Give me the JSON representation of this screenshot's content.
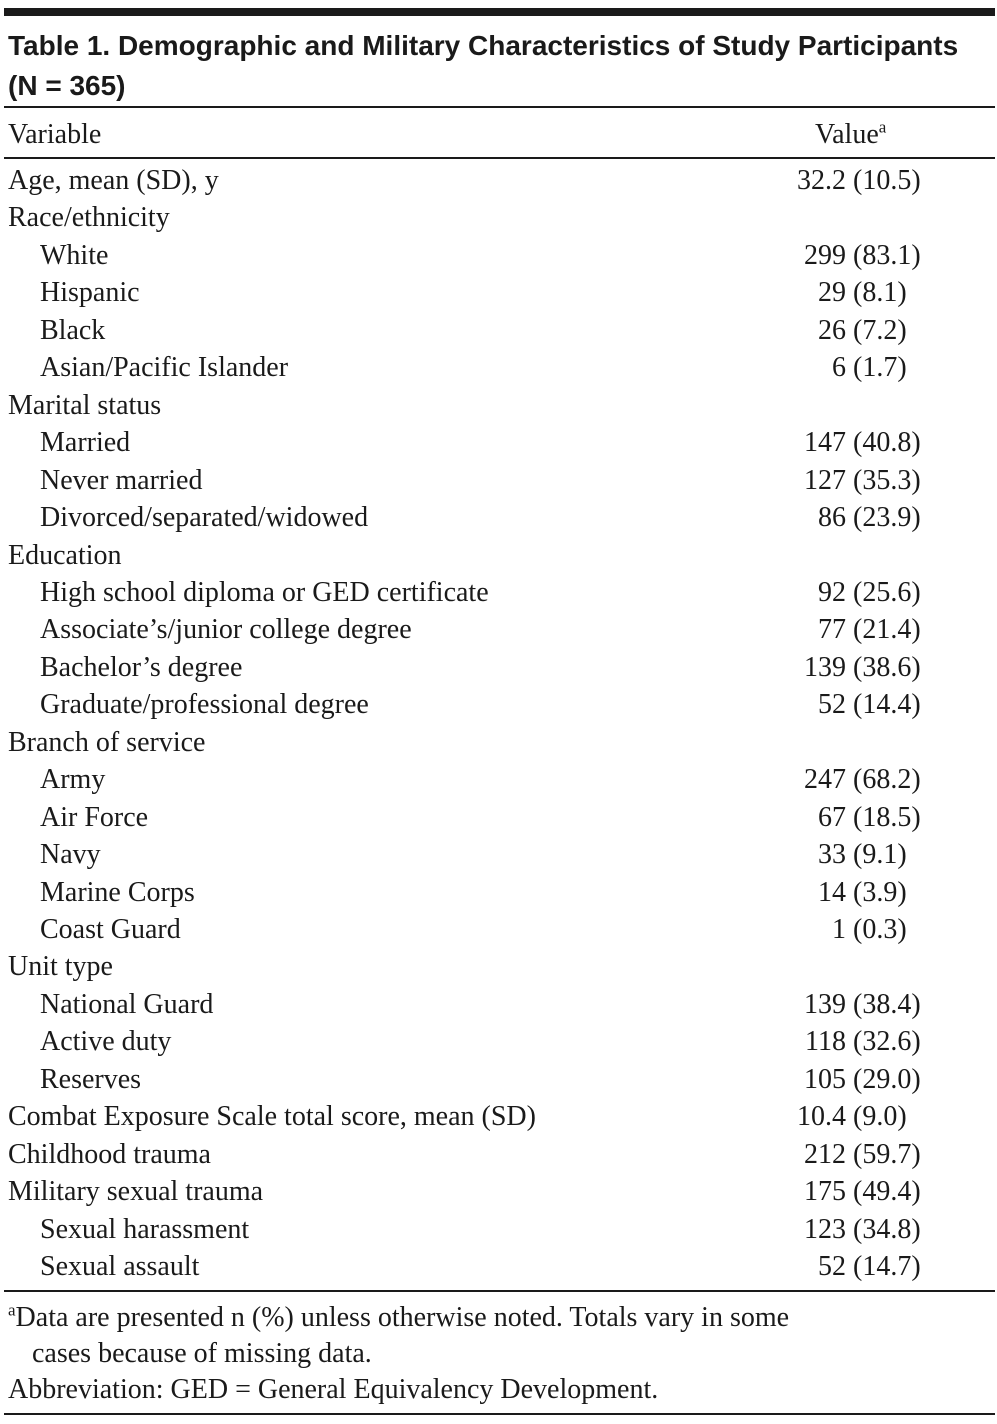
{
  "table": {
    "title": "Table 1. Demographic and Military Characteristics of Study Participants (N = 365)",
    "header": {
      "variable": "Variable",
      "value": "Value",
      "value_note": "a"
    },
    "rows": [
      {
        "label": "Age, mean (SD), y",
        "value": "32.2 (10.5)"
      },
      {
        "label": "Race/ethnicity",
        "items": [
          {
            "label": "White",
            "value": "299 (83.1)"
          },
          {
            "label": "Hispanic",
            "value": "29 (8.1)"
          },
          {
            "label": "Black",
            "value": "26 (7.2)"
          },
          {
            "label": "Asian/Pacific Islander",
            "value": "6 (1.7)"
          }
        ]
      },
      {
        "label": "Marital status",
        "items": [
          {
            "label": "Married",
            "value": "147 (40.8)"
          },
          {
            "label": "Never married",
            "value": "127 (35.3)"
          },
          {
            "label": "Divorced/separated/widowed",
            "value": "86 (23.9)"
          }
        ]
      },
      {
        "label": "Education",
        "items": [
          {
            "label": "High school diploma or GED certificate",
            "value": "92 (25.6)"
          },
          {
            "label": "Associate’s/junior college degree",
            "value": "77 (21.4)"
          },
          {
            "label": "Bachelor’s degree",
            "value": "139 (38.6)"
          },
          {
            "label": "Graduate/professional degree",
            "value": "52 (14.4)"
          }
        ]
      },
      {
        "label": "Branch of service",
        "items": [
          {
            "label": "Army",
            "value": "247 (68.2)"
          },
          {
            "label": "Air Force",
            "value": "67 (18.5)"
          },
          {
            "label": "Navy",
            "value": "33 (9.1)"
          },
          {
            "label": "Marine Corps",
            "value": "14 (3.9)"
          },
          {
            "label": "Coast Guard",
            "value": "1 (0.3)"
          }
        ]
      },
      {
        "label": "Unit type",
        "items": [
          {
            "label": "National Guard",
            "value": "139 (38.4)"
          },
          {
            "label": "Active duty",
            "value": "118 (32.6)"
          },
          {
            "label": "Reserves",
            "value": "105 (29.0)"
          }
        ]
      },
      {
        "label": "Combat Exposure Scale total score, mean (SD)",
        "value": "10.4 (9.0)"
      },
      {
        "label": "Childhood trauma",
        "value": "212 (59.7)"
      },
      {
        "label": "Military sexual trauma",
        "value": "175 (49.4)",
        "items": [
          {
            "label": "Sexual harassment",
            "value": "123 (34.8)"
          },
          {
            "label": "Sexual assault",
            "value": "52 (14.7)"
          }
        ]
      }
    ],
    "footnotes": [
      {
        "marker": "a",
        "lines": [
          "Data are presented n (%) unless otherwise noted. Totals vary in some",
          "cases because of missing data."
        ]
      },
      {
        "lines": [
          "Abbreviation: GED = General Equivalency Development."
        ]
      }
    ]
  }
}
